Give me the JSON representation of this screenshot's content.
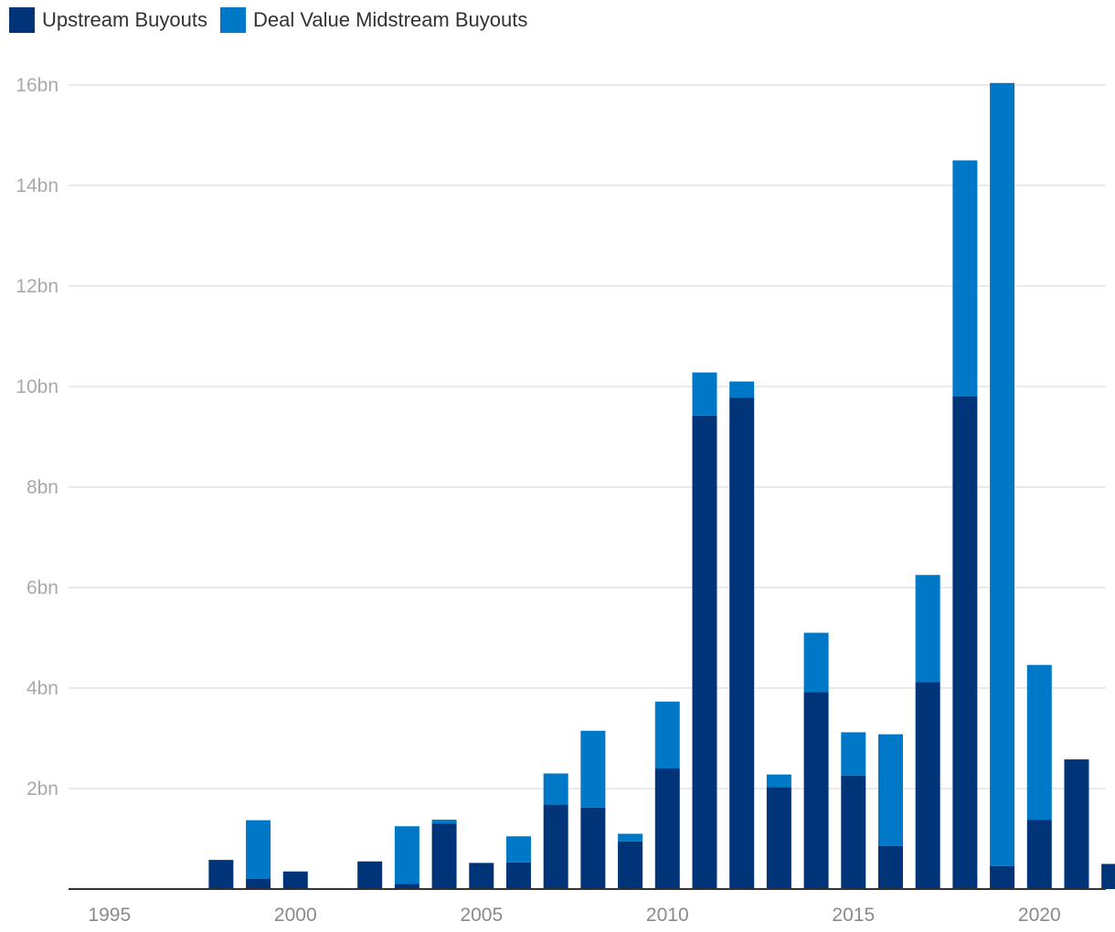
{
  "chart_data": {
    "type": "bar",
    "stacked": true,
    "title": "",
    "xlabel": "",
    "ylabel": "",
    "x_range": [
      1995,
      2022
    ],
    "x_ticks": [
      "1995",
      "2000",
      "2005",
      "2010",
      "2015",
      "2020"
    ],
    "y_range": [
      0,
      16
    ],
    "y_ticks": [
      "2bn",
      "4bn",
      "6bn",
      "8bn",
      "10bn",
      "12bn",
      "14bn",
      "16bn"
    ],
    "y_unit": "bn",
    "grid": true,
    "legend_position": "top-left",
    "years": [
      1998,
      1999,
      2000,
      2002,
      2003,
      2004,
      2005,
      2006,
      2007,
      2008,
      2009,
      2010,
      2011,
      2012,
      2013,
      2014,
      2015,
      2016,
      2017,
      2018,
      2019,
      2020,
      2021,
      2022
    ],
    "series": [
      {
        "name": "Upstream Buyouts",
        "color": "#003478",
        "values": [
          0.58,
          0.2,
          0.35,
          0.55,
          0.1,
          1.3,
          0.52,
          0.53,
          1.68,
          1.62,
          0.95,
          2.4,
          9.42,
          9.78,
          2.03,
          3.92,
          2.26,
          0.86,
          4.12,
          9.8,
          0.46,
          1.38,
          2.58,
          0.5
        ]
      },
      {
        "name": "Deal Value Midstream Buyouts",
        "color": "#0078c8",
        "values": [
          0,
          1.17,
          0,
          0,
          1.15,
          0.08,
          0,
          0.52,
          0.62,
          1.53,
          0.15,
          1.33,
          0.86,
          0.32,
          0.25,
          1.18,
          0.86,
          2.22,
          2.13,
          4.7,
          15.58,
          3.08,
          0,
          0
        ]
      }
    ]
  }
}
